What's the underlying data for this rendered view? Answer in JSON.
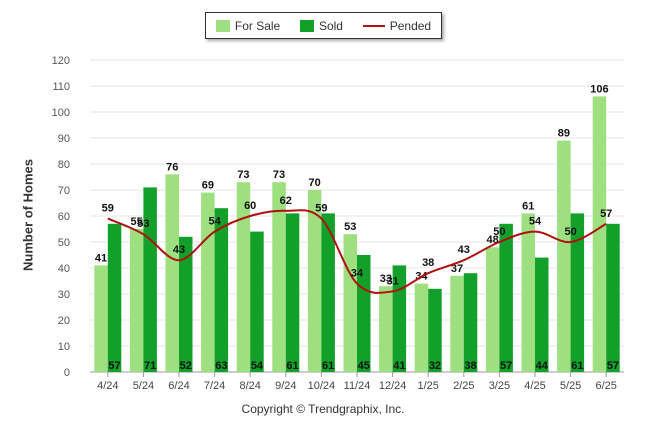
{
  "chart_data": {
    "type": "bar",
    "ylabel": "Number of Homes",
    "xlabel": "",
    "ylim": [
      0,
      120
    ],
    "yticks": [
      0,
      10,
      20,
      30,
      40,
      50,
      60,
      70,
      80,
      90,
      100,
      110,
      120
    ],
    "grid": true,
    "legend_position": "top-center",
    "categories": [
      "4/24",
      "5/24",
      "6/24",
      "7/24",
      "8/24",
      "9/24",
      "10/24",
      "11/24",
      "12/24",
      "1/25",
      "2/25",
      "3/25",
      "4/25",
      "5/25",
      "6/25"
    ],
    "series": [
      {
        "name": "For Sale",
        "type": "bar",
        "color": "#9ee080",
        "values": [
          41,
          55,
          76,
          69,
          73,
          73,
          70,
          53,
          33,
          34,
          37,
          48,
          61,
          89,
          106
        ]
      },
      {
        "name": "Sold",
        "type": "bar",
        "color": "#12a02a",
        "values": [
          57,
          71,
          52,
          63,
          54,
          61,
          61,
          45,
          41,
          32,
          38,
          57,
          44,
          61,
          57
        ]
      },
      {
        "name": "Pended",
        "type": "line",
        "color": "#b01010",
        "values": [
          59,
          53,
          43,
          54,
          60,
          62,
          59,
          34,
          31,
          38,
          43,
          50,
          54,
          50,
          57
        ]
      }
    ]
  },
  "footer": {
    "copyright": "Copyright © Trendgraphix, Inc."
  }
}
